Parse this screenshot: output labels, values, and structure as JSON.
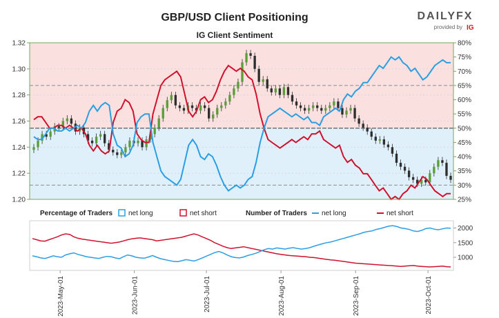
{
  "title": "GBP/USD Client Positioning",
  "brand": {
    "name": "DAILYFX",
    "provided_by": "provided by",
    "ig": "IG"
  },
  "chart_data": {
    "type": "line",
    "subtitle": "IG Client Sentiment",
    "dates": [
      "2023-May-01",
      "2023-Jun-01",
      "2023-Jul-01",
      "2023-Aug-01",
      "2023-Sep-01",
      "2023-Oct-01"
    ],
    "price_axis": {
      "ticks": [
        "1.32",
        "1.30",
        "1.28",
        "1.26",
        "1.24",
        "1.22",
        "1.20"
      ],
      "ylim": [
        1.2,
        1.32
      ]
    },
    "percent_axis": {
      "ticks": [
        "80%",
        "75%",
        "70%",
        "65%",
        "60%",
        "55%",
        "50%",
        "45%",
        "40%",
        "35%",
        "30%",
        "25%"
      ],
      "ylim": [
        25,
        80
      ]
    },
    "count_axis": {
      "ticks": [
        "2000",
        "1500",
        "1000"
      ],
      "ylim": [
        600,
        2200
      ]
    },
    "legend": {
      "percentage_heading": "Percentage of Traders",
      "number_heading": "Number of Traders",
      "net_long": "net long",
      "net_short": "net short"
    },
    "colors": {
      "long": "#2a9ee3",
      "short": "#d0102c",
      "candle": "#2e2e2e",
      "shade_short": "#fbe0e0",
      "shade_long": "#dff0fb",
      "frame": "#7aa55a"
    },
    "price_candles": [
      1.24,
      1.245,
      1.25,
      1.248,
      1.252,
      1.256,
      1.255,
      1.26,
      1.262,
      1.258,
      1.252,
      1.255,
      1.25,
      1.245,
      1.243,
      1.248,
      1.25,
      1.243,
      1.238,
      1.236,
      1.234,
      1.236,
      1.24,
      1.245,
      1.243,
      1.245,
      1.24,
      1.246,
      1.25,
      1.255,
      1.262,
      1.27,
      1.276,
      1.28,
      1.272,
      1.27,
      1.268,
      1.272,
      1.27,
      1.268,
      1.272,
      1.27,
      1.262,
      1.265,
      1.27,
      1.272,
      1.275,
      1.28,
      1.285,
      1.29,
      1.305,
      1.312,
      1.31,
      1.3,
      1.29,
      1.292,
      1.285,
      1.282,
      1.285,
      1.28,
      1.286,
      1.28,
      1.275,
      1.272,
      1.27,
      1.268,
      1.27,
      1.272,
      1.27,
      1.268,
      1.27,
      1.272,
      1.275,
      1.27,
      1.265,
      1.268,
      1.27,
      1.262,
      1.258,
      1.255,
      1.252,
      1.248,
      1.245,
      1.246,
      1.242,
      1.24,
      1.235,
      1.228,
      1.225,
      1.222,
      1.217,
      1.215,
      1.212,
      1.215,
      1.213,
      1.22,
      1.225,
      1.23,
      1.228,
      1.218,
      1.215
    ],
    "net_long_pct": [
      47,
      46,
      46,
      48,
      50,
      50,
      49,
      49,
      50,
      49,
      50,
      51,
      50,
      52,
      56,
      58,
      56,
      58,
      59,
      58,
      48,
      44,
      43,
      40,
      41,
      44,
      52,
      54,
      55,
      55,
      45,
      40,
      35,
      33,
      32,
      31,
      30,
      32,
      38,
      44,
      46,
      44,
      40,
      39,
      41,
      40,
      37,
      33,
      30,
      28,
      29,
      30,
      29,
      30,
      32,
      33,
      38,
      45,
      50,
      54,
      55,
      56,
      57,
      56,
      55,
      54,
      55,
      54,
      53,
      54,
      52,
      52,
      51,
      54,
      55,
      56,
      57,
      56,
      60,
      62,
      61,
      63,
      64,
      66,
      66,
      68,
      70,
      72,
      71,
      73,
      75,
      74,
      75,
      73,
      72,
      70,
      71,
      69,
      67,
      68,
      70,
      72,
      73,
      74,
      73,
      73
    ],
    "long_count": [
      1050,
      1020,
      980,
      960,
      1000,
      1050,
      1020,
      1000,
      1080,
      1120,
      1150,
      1100,
      1060,
      1020,
      1000,
      980,
      960,
      1000,
      1030,
      1020,
      980,
      950,
      1020,
      1080,
      1050,
      1000,
      980,
      970,
      1010,
      1060,
      1000,
      950,
      920,
      890,
      860,
      850,
      880,
      920,
      900,
      870,
      920,
      980,
      1040,
      1100,
      1160,
      1200,
      1150,
      1080,
      1020,
      990,
      980,
      1010,
      1060,
      1100,
      1140,
      1200,
      1260,
      1300,
      1280,
      1320,
      1300,
      1280,
      1310,
      1330,
      1300,
      1280,
      1300,
      1330,
      1380,
      1420,
      1460,
      1500,
      1520,
      1560,
      1600,
      1640,
      1680,
      1720,
      1760,
      1800,
      1850,
      1880,
      1900,
      1950,
      1980,
      2020,
      2060,
      2080,
      2050,
      2000,
      1980,
      1950,
      1900,
      1880,
      1920,
      1980,
      2000,
      1960,
      1940,
      1970,
      2000,
      1990
    ],
    "short_count": [
      1640,
      1600,
      1560,
      1550,
      1600,
      1650,
      1700,
      1760,
      1800,
      1780,
      1700,
      1650,
      1620,
      1600,
      1580,
      1560,
      1540,
      1520,
      1500,
      1480,
      1500,
      1520,
      1560,
      1600,
      1630,
      1650,
      1660,
      1640,
      1620,
      1600,
      1560,
      1580,
      1600,
      1620,
      1640,
      1660,
      1680,
      1720,
      1760,
      1800,
      1760,
      1700,
      1640,
      1580,
      1500,
      1440,
      1380,
      1330,
      1300,
      1320,
      1340,
      1360,
      1330,
      1300,
      1270,
      1240,
      1210,
      1180,
      1150,
      1120,
      1100,
      1080,
      1060,
      1050,
      1040,
      1030,
      1020,
      1000,
      990,
      970,
      950,
      930,
      910,
      900,
      880,
      860,
      840,
      820,
      800,
      790,
      780,
      770,
      760,
      750,
      740,
      730,
      720,
      710,
      700,
      690,
      700,
      710,
      720,
      700,
      690,
      680,
      670,
      680,
      690,
      700,
      680,
      670
    ]
  }
}
